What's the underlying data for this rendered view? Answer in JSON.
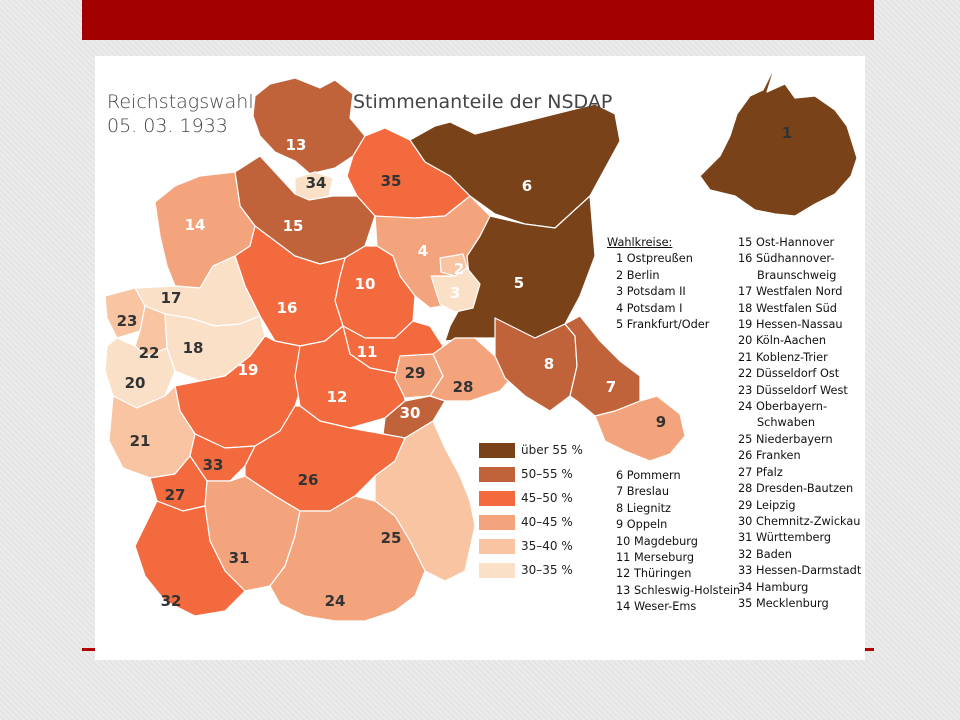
{
  "slide": {
    "bar_color": "#a30000"
  },
  "map": {
    "title": [
      "Reichstagswahl",
      "05. 03. 1933"
    ],
    "subtitle": "Stimmenanteile der NSDAP",
    "legend": [
      {
        "label": "über 55 %",
        "color": "#7a4218"
      },
      {
        "label": "50–55 %",
        "color": "#c0633a"
      },
      {
        "label": "45–50 %",
        "color": "#f26a3e"
      },
      {
        "label": "40–45 %",
        "color": "#f4a47c"
      },
      {
        "label": "35–40 %",
        "color": "#f8c4a2"
      },
      {
        "label": "30–35 %",
        "color": "#fbe0c8"
      }
    ],
    "region_labels": [
      "1",
      "2",
      "3",
      "4",
      "5",
      "6",
      "7",
      "8",
      "9",
      "10",
      "11",
      "12",
      "13",
      "14",
      "15",
      "16",
      "17",
      "18",
      "19",
      "20",
      "21",
      "22",
      "23",
      "24",
      "25",
      "26",
      "27",
      "28",
      "29",
      "30",
      "31",
      "32",
      "33",
      "34",
      "35"
    ],
    "list_header": "Wahlkreise:",
    "list_col1_top": [
      "1 Ostpreußen",
      "2 Berlin",
      "3 Potsdam II",
      "4 Potsdam I",
      "5 Frankfurt/Oder"
    ],
    "list_col1_bottom": [
      "6 Pommern",
      "7 Breslau",
      "8 Liegnitz",
      "9 Oppeln",
      "10 Magdeburg",
      "11 Merseburg",
      "12 Thüringen",
      "13 Schleswig-Holstein",
      "14 Weser-Ems"
    ],
    "list_col2": [
      {
        "text": "15 Ost-Hannover"
      },
      {
        "text": "16 Südhannover-"
      },
      {
        "text": "Braunschweig",
        "cont": true
      },
      {
        "text": "17 Westfalen Nord"
      },
      {
        "text": "18 Westfalen Süd"
      },
      {
        "text": "19 Hessen-Nassau"
      },
      {
        "text": "20 Köln-Aachen"
      },
      {
        "text": "21 Koblenz-Trier"
      },
      {
        "text": "22 Düsseldorf Ost"
      },
      {
        "text": "23 Düsseldorf West"
      },
      {
        "text": "24 Oberbayern-"
      },
      {
        "text": "Schwaben",
        "cont": true
      },
      {
        "text": "25 Niederbayern"
      },
      {
        "text": "26 Franken"
      },
      {
        "text": "27 Pfalz"
      },
      {
        "text": "28 Dresden-Bautzen"
      },
      {
        "text": "29 Leipzig"
      },
      {
        "text": "30 Chemnitz-Zwickau"
      },
      {
        "text": "31 Württemberg"
      },
      {
        "text": "32 Baden"
      },
      {
        "text": "33 Hessen-Darmstadt"
      },
      {
        "text": "34 Hamburg"
      },
      {
        "text": "35 Mecklenburg"
      }
    ]
  }
}
